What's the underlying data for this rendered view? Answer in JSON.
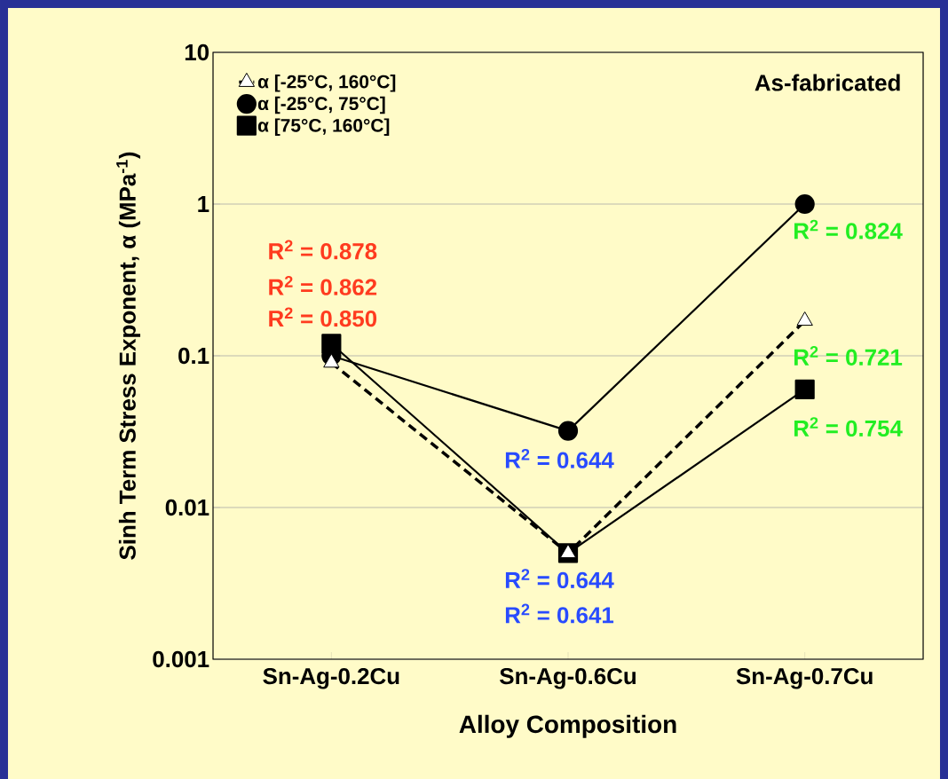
{
  "chart_data": {
    "type": "line",
    "ylabel": "Sinh Term Stress Exponent, α  (MPa$^{-1}$)",
    "xlabel": "Alloy Composition",
    "categories": [
      "Sn-Ag-0.2Cu",
      "Sn-Ag-0.6Cu",
      "Sn-Ag-0.7Cu"
    ],
    "series": [
      {
        "name": "α [-25°C, 160°C]",
        "color": "#000000",
        "marker": "triangle",
        "line_style": "dashed",
        "values": [
          0.09,
          0.005,
          0.17
        ]
      },
      {
        "name": "α [-25°C, 75°C]",
        "color": "#000000",
        "marker": "circle",
        "line_style": "solid",
        "values": [
          0.1,
          0.032,
          1.0
        ]
      },
      {
        "name": "α [75°C, 160°C]",
        "color": "#000000",
        "marker": "square",
        "line_style": "solid",
        "values": [
          0.12,
          0.005,
          0.06
        ]
      }
    ],
    "log": "y",
    "ylim": [
      0.001,
      10
    ],
    "yticks": [
      0.001,
      0.01,
      0.1,
      1,
      10
    ],
    "grid": "y",
    "legend": "top left",
    "annotations": [
      "As-fabricated",
      "R$^{2}$ = 0.878",
      "R$^{2}$ = 0.862",
      "R$^{2}$ = 0.850",
      "R$^{2}$ = 0.644",
      "R$^{2}$ = 0.644",
      "R$^{2}$ = 0.641",
      "R$^{2}$ = 0.824",
      "R$^{2}$ = 0.721",
      "R$^{2}$ = 0.754"
    ]
  }
}
